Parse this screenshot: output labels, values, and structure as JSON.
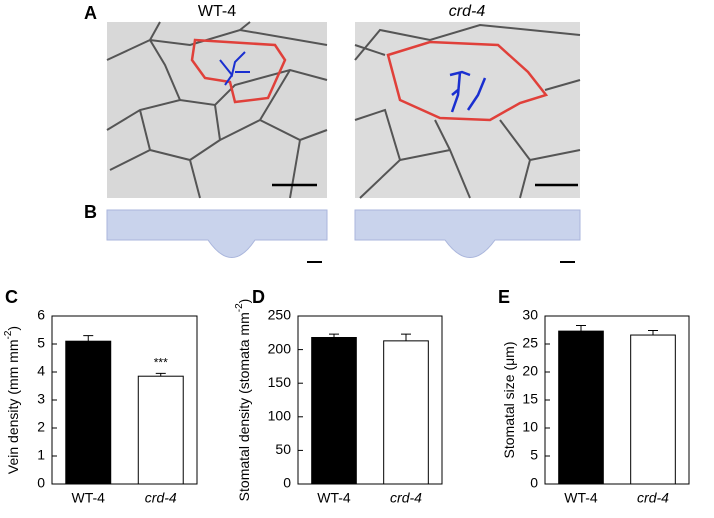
{
  "figure": {
    "panel_a": "A",
    "panel_b": "B",
    "image_titles": [
      "WT-4",
      "crd-4"
    ]
  },
  "chart_data": [
    {
      "type": "bar",
      "panel": "C",
      "y_label": [
        "Vein density (mm mm",
        "-2",
        ")"
      ],
      "categories": [
        "WT-4",
        "crd-4"
      ],
      "values": [
        5.1,
        3.85
      ],
      "errors": [
        0.2,
        0.1
      ],
      "colors": [
        "#000000",
        "#ffffff"
      ],
      "ylim": [
        0,
        6
      ],
      "yticks": [
        0,
        1,
        2,
        3,
        4,
        5,
        6
      ],
      "annotations": [
        {
          "text": "***",
          "category": "crd-4"
        }
      ]
    },
    {
      "type": "bar",
      "panel": "D",
      "y_label": [
        "Stomatal density (stomata mm",
        "-2",
        ")"
      ],
      "categories": [
        "WT-4",
        "crd-4"
      ],
      "values": [
        218,
        213
      ],
      "errors": [
        5,
        10
      ],
      "colors": [
        "#000000",
        "#ffffff"
      ],
      "ylim": [
        0,
        250
      ],
      "yticks": [
        0,
        50,
        100,
        150,
        200,
        250
      ]
    },
    {
      "type": "bar",
      "panel": "E",
      "y_label": [
        "Stomatal size (μm)"
      ],
      "categories": [
        "WT-4",
        "crd-4"
      ],
      "values": [
        27.3,
        26.6
      ],
      "errors": [
        1,
        0.8
      ],
      "colors": [
        "#000000",
        "#ffffff"
      ],
      "ylim": [
        0,
        30
      ],
      "yticks": [
        0,
        5,
        10,
        15,
        20,
        25,
        30
      ]
    }
  ]
}
